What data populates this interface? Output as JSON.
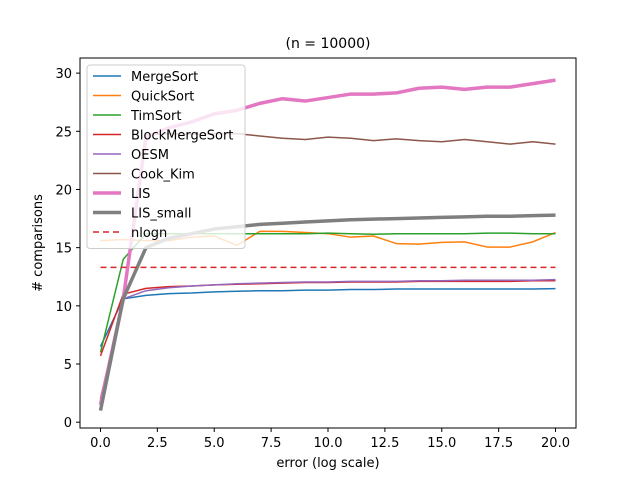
{
  "chart_data": {
    "type": "line",
    "title": "(n = 10000)",
    "xlabel": "error (log scale)",
    "ylabel": "# comparisons",
    "xlim": [
      -0.9,
      20.9
    ],
    "ylim": [
      -0.5,
      31.3
    ],
    "xticks": [
      0.0,
      2.5,
      5.0,
      7.5,
      10.0,
      12.5,
      15.0,
      17.5,
      20.0
    ],
    "xtick_labels": [
      "0.0",
      "2.5",
      "5.0",
      "7.5",
      "10.0",
      "12.5",
      "15.0",
      "17.5",
      "20.0"
    ],
    "yticks": [
      0,
      5,
      10,
      15,
      20,
      25,
      30
    ],
    "ytick_labels": [
      "0",
      "5",
      "10",
      "15",
      "20",
      "25",
      "30"
    ],
    "legend_position": "top-left",
    "x": [
      0,
      1,
      2,
      3,
      4,
      5,
      6,
      7,
      8,
      9,
      10,
      11,
      12,
      13,
      14,
      15,
      16,
      17,
      18,
      19,
      20
    ],
    "series": [
      {
        "name": "MergeSort",
        "color": "#1f77b4",
        "width": 1.5,
        "dash": "",
        "values": [
          6.5,
          10.6,
          10.9,
          11.05,
          11.1,
          11.2,
          11.25,
          11.3,
          11.3,
          11.35,
          11.35,
          11.4,
          11.4,
          11.45,
          11.45,
          11.45,
          11.45,
          11.45,
          11.45,
          11.45,
          11.48
        ]
      },
      {
        "name": "QuickSort",
        "color": "#ff7f0e",
        "width": 1.5,
        "dash": "",
        "values": [
          15.6,
          15.7,
          15.6,
          15.6,
          15.9,
          16.0,
          15.2,
          16.4,
          16.4,
          16.3,
          16.2,
          15.9,
          16.0,
          15.35,
          15.3,
          15.45,
          15.5,
          15.05,
          15.05,
          15.5,
          16.3
        ]
      },
      {
        "name": "TimSort",
        "color": "#2ca02c",
        "width": 1.5,
        "dash": "",
        "values": [
          6.0,
          14.0,
          16.2,
          16.2,
          16.2,
          16.2,
          16.2,
          16.2,
          16.2,
          16.2,
          16.25,
          16.2,
          16.15,
          16.2,
          16.2,
          16.2,
          16.2,
          16.25,
          16.25,
          16.2,
          16.2
        ]
      },
      {
        "name": "BlockMergeSort",
        "color": "#d62728",
        "width": 1.5,
        "dash": "",
        "values": [
          5.7,
          11.0,
          11.5,
          11.65,
          11.7,
          11.8,
          11.85,
          11.9,
          11.95,
          12.0,
          12.0,
          12.05,
          12.05,
          12.05,
          12.1,
          12.1,
          12.1,
          12.1,
          12.1,
          12.15,
          12.15
        ]
      },
      {
        "name": "OESM",
        "color": "#9467bd",
        "width": 1.5,
        "dash": "",
        "values": [
          2.0,
          10.6,
          11.3,
          11.55,
          11.7,
          11.8,
          11.9,
          11.95,
          12.0,
          12.05,
          12.05,
          12.1,
          12.1,
          12.1,
          12.15,
          12.15,
          12.2,
          12.2,
          12.2,
          12.2,
          12.25
        ]
      },
      {
        "name": "Cook_Kim",
        "color": "#8c564b",
        "width": 1.5,
        "dash": "",
        "values": [
          2.0,
          10.5,
          24.7,
          24.8,
          24.75,
          24.8,
          24.8,
          24.6,
          24.4,
          24.3,
          24.5,
          24.4,
          24.2,
          24.35,
          24.2,
          24.1,
          24.3,
          24.1,
          23.9,
          24.1,
          23.9
        ]
      },
      {
        "name": "LIS",
        "color": "#e377c2",
        "width": 3.5,
        "dash": "",
        "values": [
          1.5,
          10.6,
          24.5,
          25.3,
          25.8,
          26.5,
          26.8,
          27.4,
          27.8,
          27.6,
          27.9,
          28.2,
          28.2,
          28.3,
          28.7,
          28.8,
          28.6,
          28.8,
          28.8,
          29.1,
          29.4
        ]
      },
      {
        "name": "LIS_small",
        "color": "#7f7f7f",
        "width": 3.5,
        "dash": "",
        "values": [
          1.0,
          10.6,
          15.0,
          15.8,
          16.2,
          16.6,
          16.8,
          17.0,
          17.1,
          17.2,
          17.3,
          17.4,
          17.45,
          17.5,
          17.55,
          17.6,
          17.65,
          17.7,
          17.7,
          17.75,
          17.8
        ]
      },
      {
        "name": "nlogn",
        "color": "#d62728",
        "width": 1.5,
        "dash": "6,4",
        "values": [
          13.3,
          13.3,
          13.3,
          13.3,
          13.3,
          13.3,
          13.3,
          13.3,
          13.3,
          13.3,
          13.3,
          13.3,
          13.3,
          13.3,
          13.3,
          13.3,
          13.3,
          13.3,
          13.3,
          13.3,
          13.3
        ]
      }
    ]
  }
}
